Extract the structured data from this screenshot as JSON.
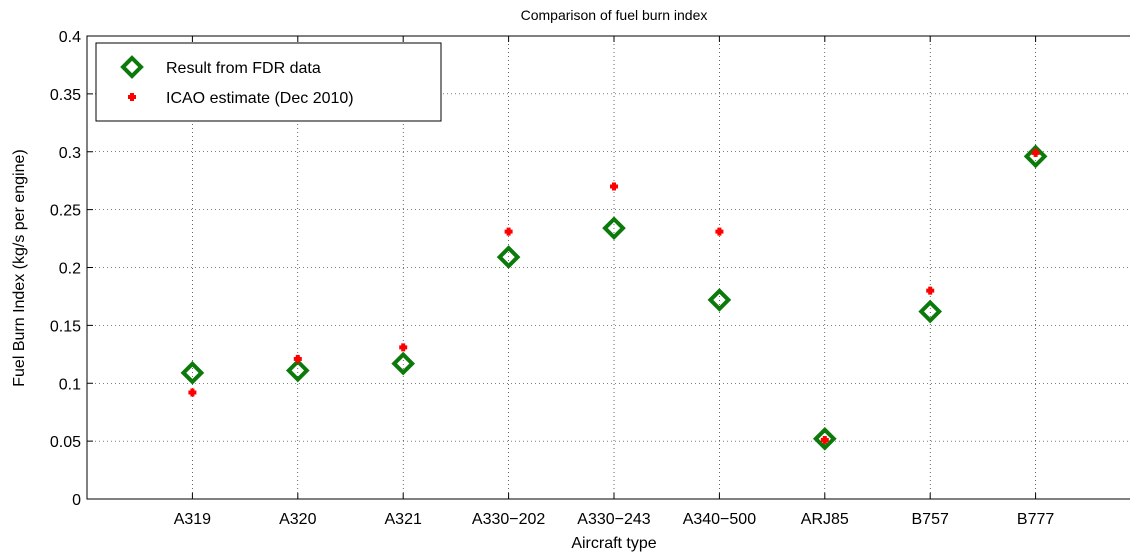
{
  "chart_data": {
    "type": "scatter",
    "title": "Comparison of fuel burn index",
    "xlabel": "Aircraft type",
    "ylabel": "Fuel Burn Index (kg/s per engine)",
    "categories": [
      "A319",
      "A320",
      "A321",
      "A330−202",
      "A330−243",
      "A340−500",
      "ARJ85",
      "B757",
      "B777"
    ],
    "ylim": [
      0,
      0.4
    ],
    "yticks": [
      "0",
      "0.05",
      "0.1",
      "0.15",
      "0.2",
      "0.25",
      "0.3",
      "0.35",
      "0.4"
    ],
    "grid": true,
    "legend_position": "top-left",
    "series": [
      {
        "name": "Result from FDR data",
        "marker": "diamond",
        "color": "#0b7a0b",
        "values": [
          0.109,
          0.111,
          0.117,
          0.209,
          0.234,
          0.172,
          0.052,
          0.162,
          0.296
        ]
      },
      {
        "name": "ICAO estimate (Dec 2010)",
        "marker": "plus",
        "color": "#ff0000",
        "values": [
          0.092,
          0.121,
          0.131,
          0.231,
          0.27,
          0.231,
          0.051,
          0.18,
          0.299
        ]
      }
    ]
  }
}
